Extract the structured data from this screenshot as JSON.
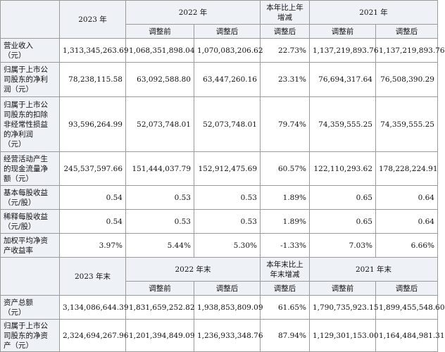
{
  "header1": {
    "year_2023": "2023 年",
    "year_2022": "2022 年",
    "change": [
      "本年比上年",
      "增减"
    ],
    "year_2021": "2021 年"
  },
  "header2": {
    "before_2022": "调整前",
    "after_2022": "调整后",
    "after_change": "调整后",
    "before_2021": "调整前",
    "after_2021": "调整后"
  },
  "rows": [
    {
      "label": [
        "营业收入",
        "（元）"
      ],
      "v2023": "1,313,345,263.69",
      "v2022_before": "1,068,351,898.04",
      "v2022_after": "1,070,083,206.62",
      "change": "22.73%",
      "v2021_before": "1,137,219,893.76",
      "v2021_after": "1,137,219,893.76"
    },
    {
      "label": [
        "归属于上市公",
        "司股东的净利",
        "润（元）"
      ],
      "v2023": "78,238,115.58",
      "v2022_before": "63,092,588.80",
      "v2022_after": "63,447,260.16",
      "change": "23.31%",
      "v2021_before": "76,694,317.64",
      "v2021_after": "76,508,390.29"
    },
    {
      "label": [
        "归属于上市公",
        "司股东的扣除",
        "非经常性损益",
        "的净利润",
        "（元）"
      ],
      "v2023": "93,596,264.99",
      "v2022_before": "52,073,748.01",
      "v2022_after": "52,073,748.01",
      "change": "79.74%",
      "v2021_before": "74,359,555.25",
      "v2021_after": "74,359,555.25"
    },
    {
      "label": [
        "经营活动产生",
        "的现金流量净",
        "额（元）"
      ],
      "v2023": "245,537,597.66",
      "v2022_before": "151,444,037.79",
      "v2022_after": "152,912,475.69",
      "change": "60.57%",
      "v2021_before": "122,110,293.62",
      "v2021_after": "178,228,224.91"
    },
    {
      "label": [
        "基本每股收益",
        "（元/股）"
      ],
      "v2023": "0.54",
      "v2022_before": "0.53",
      "v2022_after": "0.53",
      "change": "1.89%",
      "v2021_before": "0.65",
      "v2021_after": "0.64"
    },
    {
      "label": [
        "稀释每股收益",
        "（元/股）"
      ],
      "v2023": "0.54",
      "v2022_before": "0.53",
      "v2022_after": "0.53",
      "change": "1.89%",
      "v2021_before": "0.65",
      "v2021_after": "0.64"
    },
    {
      "label": [
        "加权平均净资",
        "产收益率"
      ],
      "v2023": "3.97%",
      "v2022_before": "5.44%",
      "v2022_after": "5.30%",
      "change": "-1.33%",
      "v2021_before": "7.03%",
      "v2021_after": "6.66%"
    }
  ],
  "header3": {
    "end_2023": "2023 年末",
    "end_2022": "2022 年末",
    "change": [
      "本年末比上",
      "年末增减"
    ],
    "end_2021": "2021 年末"
  },
  "header4": {
    "before_2022": "调整前",
    "after_2022": "调整后",
    "after_change": "调整后",
    "before_2021": "调整前",
    "after_2021": "调整后"
  },
  "rows2": [
    {
      "label": [
        "资产总额",
        "（元）"
      ],
      "v2023": "3,134,086,644.39",
      "v2022_before": "1,831,659,252.82",
      "v2022_after": "1,938,853,809.09",
      "change": "61.65%",
      "v2021_before": "1,790,735,923.15",
      "v2021_after": "1,899,455,548.60"
    },
    {
      "label": [
        "归属于上市公",
        "司股东的净资",
        "产（元）"
      ],
      "v2023": "2,324,694,267.96",
      "v2022_before": "1,201,394,849.09",
      "v2022_after": "1,236,933,348.76",
      "change": "87.94%",
      "v2021_before": "1,129,301,153.00",
      "v2021_after": "1,164,484,981.31"
    }
  ]
}
